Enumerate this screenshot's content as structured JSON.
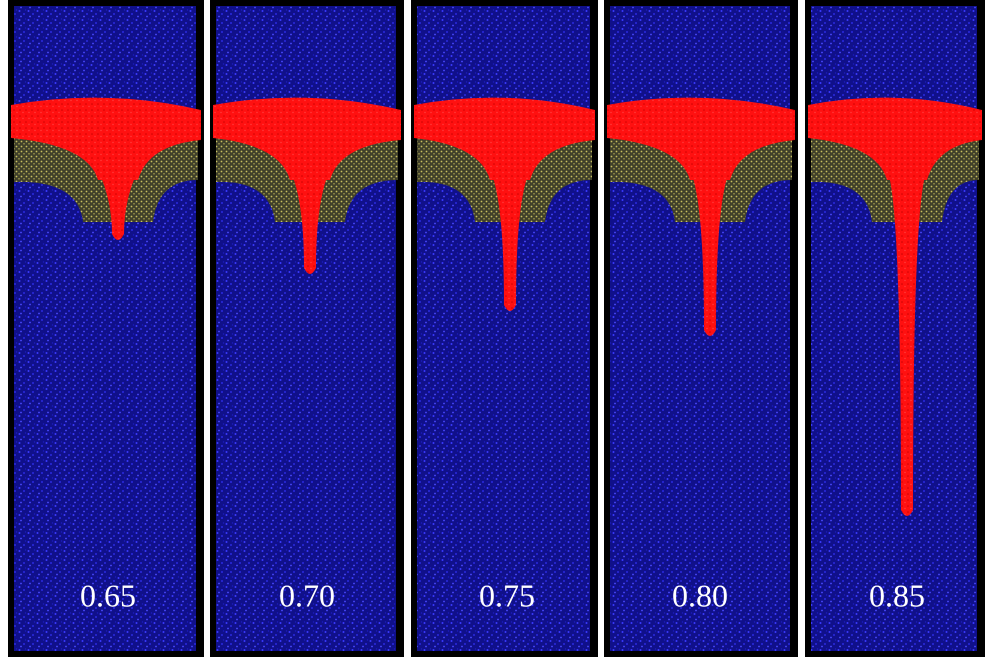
{
  "panels": [
    {
      "label": "0.65"
    },
    {
      "label": "0.70"
    },
    {
      "label": "0.75"
    },
    {
      "label": "0.80"
    },
    {
      "label": "0.85"
    }
  ]
}
